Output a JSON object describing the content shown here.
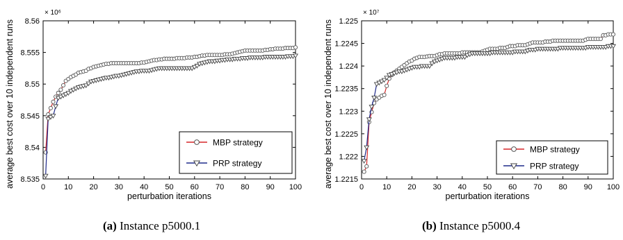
{
  "figures": [
    {
      "caption_tag": "(a)",
      "caption_text": " Instance p5000.1",
      "chart_data": {
        "type": "line",
        "xlabel": "perturbation iterations",
        "ylabel": "average best cost over 10 independent runs",
        "y_multiplier": "× 10⁶",
        "xlim": [
          0,
          100
        ],
        "ylim": [
          8.535,
          8.56
        ],
        "x_ticks": [
          "0",
          "10",
          "20",
          "30",
          "40",
          "50",
          "60",
          "70",
          "80",
          "90",
          "100"
        ],
        "y_ticks": [
          "8.535",
          "8.54",
          "8.545",
          "8.55",
          "8.555",
          "8.56"
        ],
        "legend_position": "bottom-right",
        "grid": false,
        "x": [
          1,
          2,
          3,
          4,
          5,
          6,
          7,
          8,
          9,
          10,
          11,
          12,
          13,
          14,
          15,
          16,
          17,
          18,
          19,
          20,
          21,
          22,
          23,
          24,
          25,
          26,
          27,
          28,
          29,
          30,
          31,
          32,
          33,
          34,
          35,
          36,
          37,
          38,
          39,
          40,
          41,
          42,
          43,
          44,
          45,
          46,
          47,
          48,
          49,
          50,
          51,
          52,
          53,
          54,
          55,
          56,
          57,
          58,
          59,
          60,
          61,
          62,
          63,
          64,
          65,
          66,
          67,
          68,
          69,
          70,
          71,
          72,
          73,
          74,
          75,
          76,
          77,
          78,
          79,
          80,
          81,
          82,
          83,
          84,
          85,
          86,
          87,
          88,
          89,
          90,
          91,
          92,
          93,
          94,
          95,
          96,
          97,
          98,
          99,
          100
        ],
        "series": [
          {
            "name": "MBP strategy",
            "color": "#d62728",
            "marker": "circle",
            "values": [
              8.5392,
              8.5452,
              8.5462,
              8.5472,
              8.548,
              8.5486,
              8.5491,
              8.5498,
              8.5505,
              8.5508,
              8.5511,
              8.5513,
              8.5515,
              8.5518,
              8.5519,
              8.552,
              8.5521,
              8.5524,
              8.5525,
              8.5527,
              8.5528,
              8.5529,
              8.553,
              8.5531,
              8.5532,
              8.5532,
              8.5533,
              8.5533,
              8.5533,
              8.5533,
              8.5533,
              8.5533,
              8.5533,
              8.5533,
              8.5533,
              8.5533,
              8.5533,
              8.5533,
              8.5534,
              8.5534,
              8.5535,
              8.5536,
              8.5537,
              8.5538,
              8.5538,
              8.5539,
              8.5539,
              8.554,
              8.554,
              8.554,
              8.554,
              8.554,
              8.5541,
              8.5541,
              8.5541,
              8.5541,
              8.5542,
              8.5542,
              8.5542,
              8.5543,
              8.5543,
              8.5544,
              8.5545,
              8.5545,
              8.5546,
              8.5546,
              8.5546,
              8.5546,
              8.5546,
              8.5546,
              8.5546,
              8.5547,
              8.5547,
              8.5547,
              8.5548,
              8.5549,
              8.555,
              8.5551,
              8.5552,
              8.5553,
              8.5553,
              8.5553,
              8.5553,
              8.5553,
              8.5553,
              8.5553,
              8.5553,
              8.5554,
              8.5554,
              8.5555,
              8.5555,
              8.5556,
              8.5556,
              8.5556,
              8.5556,
              8.5557,
              8.5557,
              8.5557,
              8.5557,
              8.5558
            ]
          },
          {
            "name": "PRP strategy",
            "color": "#1f2a8a",
            "marker": "triangle-down",
            "values": [
              8.5355,
              8.5445,
              8.5448,
              8.545,
              8.5465,
              8.5478,
              8.548,
              8.5482,
              8.5484,
              8.5486,
              8.5489,
              8.5491,
              8.5493,
              8.5495,
              8.5496,
              8.5497,
              8.5498,
              8.5501,
              8.5504,
              8.5505,
              8.5506,
              8.5507,
              8.5508,
              8.5509,
              8.551,
              8.551,
              8.5511,
              8.5512,
              8.5513,
              8.5513,
              8.5514,
              8.5515,
              8.5516,
              8.5517,
              8.5518,
              8.5519,
              8.552,
              8.552,
              8.5521,
              8.5521,
              8.5521,
              8.5521,
              8.5522,
              8.5523,
              8.5524,
              8.5525,
              8.5525,
              8.5525,
              8.5525,
              8.5525,
              8.5525,
              8.5525,
              8.5525,
              8.5525,
              8.5525,
              8.5525,
              8.5525,
              8.5525,
              8.5525,
              8.5527,
              8.5529,
              8.5532,
              8.5533,
              8.5534,
              8.5535,
              8.5536,
              8.5536,
              8.5536,
              8.5537,
              8.5537,
              8.5538,
              8.5538,
              8.5539,
              8.5539,
              8.5539,
              8.554,
              8.554,
              8.554,
              8.5541,
              8.5541,
              8.5541,
              8.5542,
              8.5542,
              8.5542,
              8.5542,
              8.5542,
              8.5542,
              8.5543,
              8.5543,
              8.5543,
              8.5543,
              8.5543,
              8.5543,
              8.5543,
              8.5543,
              8.5543,
              8.5544,
              8.5544,
              8.5544,
              8.5545
            ]
          }
        ]
      }
    },
    {
      "caption_tag": "(b)",
      "caption_text": " Instance p5000.4",
      "chart_data": {
        "type": "line",
        "xlabel": "perturbation iterations",
        "ylabel": "average best cost over 10 independent runs",
        "y_multiplier": "× 10⁷",
        "xlim": [
          0,
          100
        ],
        "ylim": [
          1.2215,
          1.225
        ],
        "x_ticks": [
          "0",
          "10",
          "20",
          "30",
          "40",
          "50",
          "60",
          "70",
          "80",
          "90",
          "100"
        ],
        "y_ticks": [
          "1.2215",
          "1.222",
          "1.2225",
          "1.223",
          "1.2235",
          "1.224",
          "1.2245",
          "1.225"
        ],
        "legend_position": "bottom-right",
        "grid": false,
        "x": [
          1,
          2,
          3,
          4,
          5,
          6,
          7,
          8,
          9,
          10,
          11,
          12,
          13,
          14,
          15,
          16,
          17,
          18,
          19,
          20,
          21,
          22,
          23,
          24,
          25,
          26,
          27,
          28,
          29,
          30,
          31,
          32,
          33,
          34,
          35,
          36,
          37,
          38,
          39,
          40,
          41,
          42,
          43,
          44,
          45,
          46,
          47,
          48,
          49,
          50,
          51,
          52,
          53,
          54,
          55,
          56,
          57,
          58,
          59,
          60,
          61,
          62,
          63,
          64,
          65,
          66,
          67,
          68,
          69,
          70,
          71,
          72,
          73,
          74,
          75,
          76,
          77,
          78,
          79,
          80,
          81,
          82,
          83,
          84,
          85,
          86,
          87,
          88,
          89,
          90,
          91,
          92,
          93,
          94,
          95,
          96,
          97,
          98,
          99,
          100
        ],
        "series": [
          {
            "name": "MBP strategy",
            "color": "#d62728",
            "marker": "circle",
            "values": [
              1.22166,
              1.22178,
              1.22276,
              1.22298,
              1.22318,
              1.22326,
              1.2233,
              1.22334,
              1.22336,
              1.22356,
              1.22372,
              1.2238,
              1.22386,
              1.2239,
              1.22394,
              1.22398,
              1.22402,
              1.22406,
              1.2241,
              1.22412,
              1.22416,
              1.22418,
              1.2242,
              1.2242,
              1.2242,
              1.22421,
              1.22422,
              1.22422,
              1.22422,
              1.22424,
              1.22426,
              1.22426,
              1.22428,
              1.22428,
              1.22428,
              1.22428,
              1.22428,
              1.22428,
              1.22428,
              1.2243,
              1.2243,
              1.2243,
              1.2243,
              1.2243,
              1.2243,
              1.2243,
              1.2243,
              1.22432,
              1.22434,
              1.22436,
              1.22438,
              1.22438,
              1.22438,
              1.22438,
              1.2244,
              1.2244,
              1.2244,
              1.22442,
              1.22444,
              1.22444,
              1.22444,
              1.22446,
              1.22446,
              1.22446,
              1.22446,
              1.22448,
              1.2245,
              1.22452,
              1.22452,
              1.22452,
              1.22452,
              1.22452,
              1.22454,
              1.22454,
              1.22454,
              1.22456,
              1.22456,
              1.22456,
              1.22456,
              1.22456,
              1.22456,
              1.22456,
              1.22456,
              1.22456,
              1.22456,
              1.22456,
              1.22456,
              1.22456,
              1.22458,
              1.2246,
              1.2246,
              1.2246,
              1.2246,
              1.2246,
              1.2246,
              1.22468,
              1.22468,
              1.2247,
              1.2247,
              1.2247
            ]
          },
          {
            "name": "PRP strategy",
            "color": "#1f2a8a",
            "marker": "triangle-down",
            "values": [
              1.2219,
              1.2222,
              1.22282,
              1.2231,
              1.2233,
              1.2236,
              1.22363,
              1.22366,
              1.22369,
              1.22374,
              1.2238,
              1.22382,
              1.22384,
              1.22386,
              1.22388,
              1.22388,
              1.2239,
              1.22392,
              1.22394,
              1.22396,
              1.22398,
              1.22398,
              1.22398,
              1.224,
              1.224,
              1.224,
              1.224,
              1.22406,
              1.2241,
              1.22412,
              1.22414,
              1.22416,
              1.22418,
              1.22418,
              1.22418,
              1.22418,
              1.22418,
              1.2242,
              1.2242,
              1.2242,
              1.2242,
              1.22424,
              1.22426,
              1.22428,
              1.22428,
              1.22428,
              1.22428,
              1.22428,
              1.22428,
              1.22428,
              1.22428,
              1.2243,
              1.2243,
              1.2243,
              1.2243,
              1.2243,
              1.2243,
              1.2243,
              1.2243,
              1.2243,
              1.22432,
              1.22432,
              1.22432,
              1.22432,
              1.22432,
              1.22434,
              1.22436,
              1.22436,
              1.22436,
              1.22438,
              1.22438,
              1.22438,
              1.22438,
              1.22438,
              1.22438,
              1.22438,
              1.22438,
              1.22438,
              1.2244,
              1.2244,
              1.2244,
              1.2244,
              1.2244,
              1.2244,
              1.2244,
              1.2244,
              1.2244,
              1.2244,
              1.2244,
              1.22442,
              1.22442,
              1.22442,
              1.22442,
              1.22442,
              1.22442,
              1.22442,
              1.22442,
              1.22444,
              1.22444,
              1.22444
            ]
          }
        ]
      }
    }
  ]
}
